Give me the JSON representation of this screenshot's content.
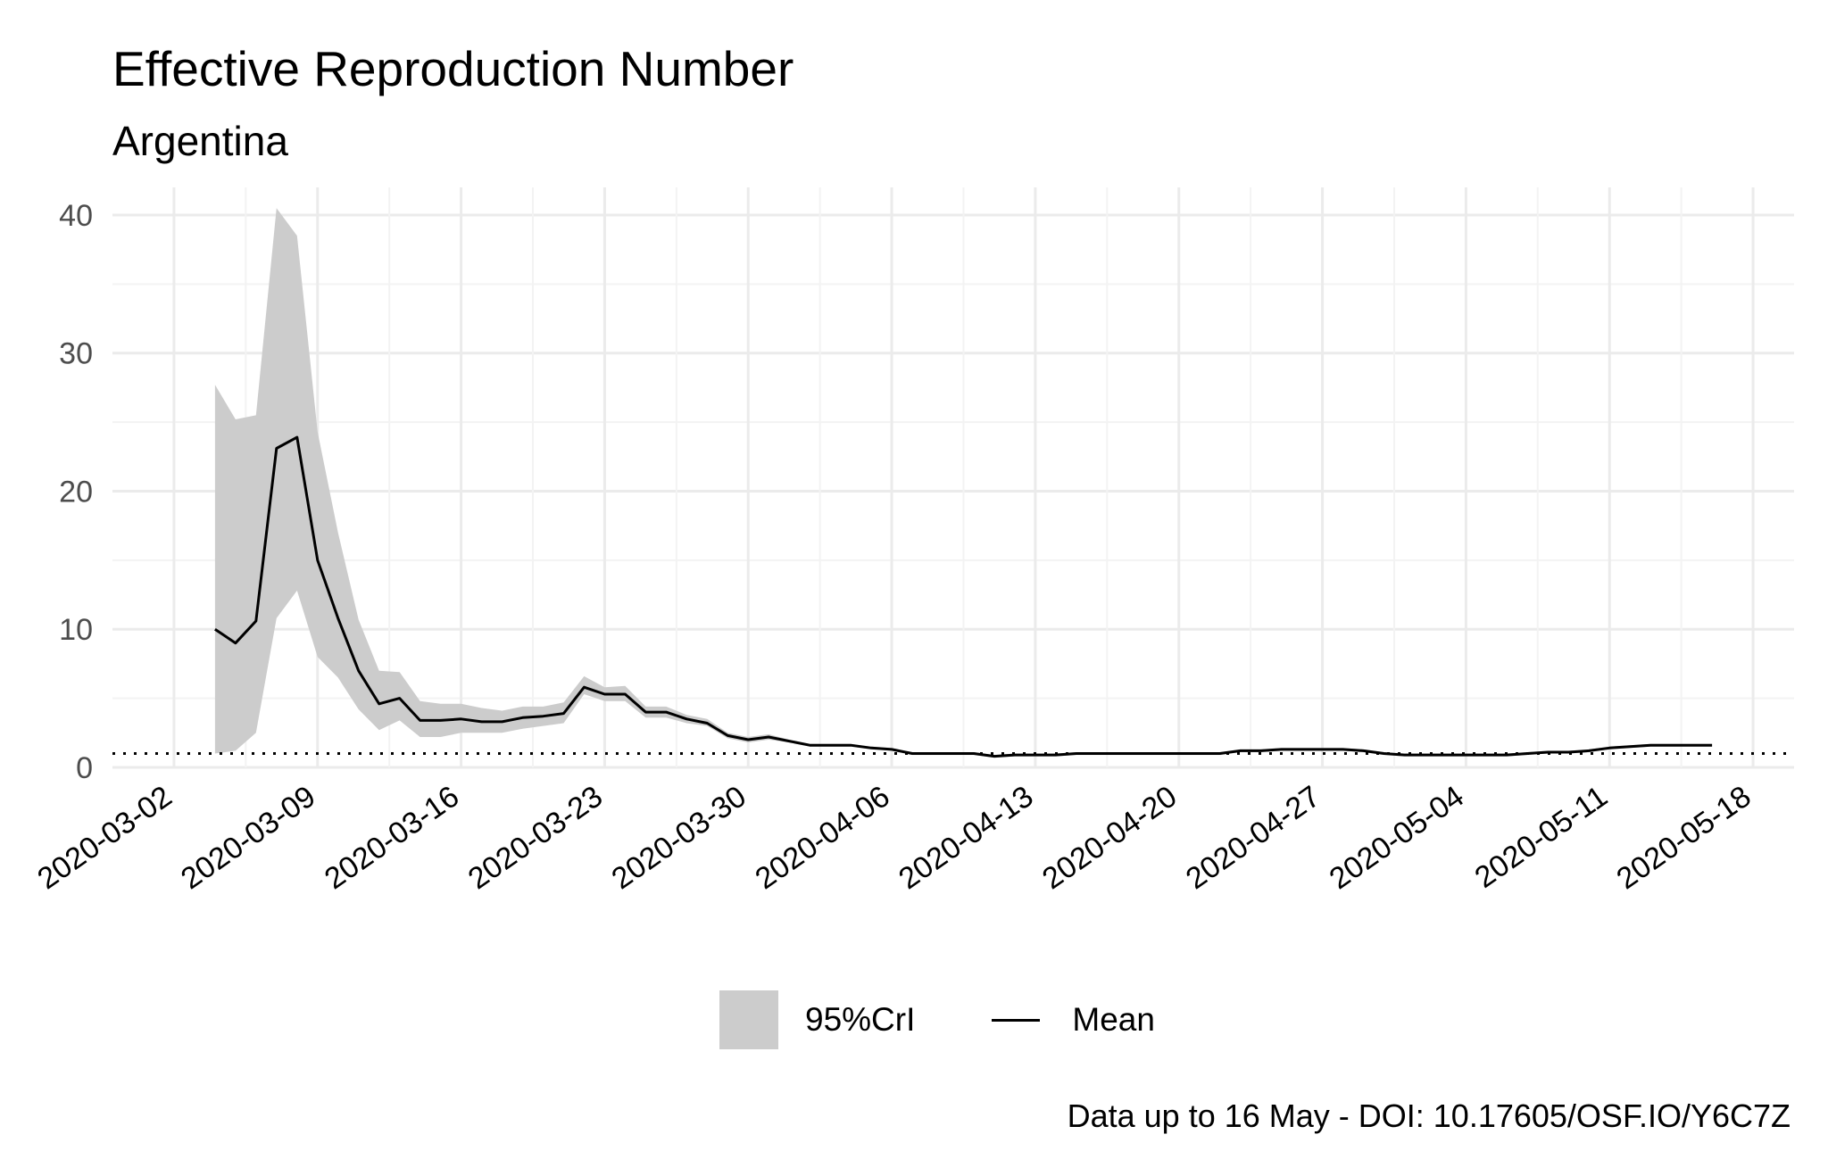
{
  "chart_data": {
    "type": "line",
    "title": "Effective Reproduction Number",
    "subtitle": "Argentina",
    "xlabel": "",
    "ylabel": "",
    "caption": "Data up to 16 May - DOI: 10.17605/OSF.IO/Y6C7Z",
    "ylim": [
      0,
      42
    ],
    "yticks": [
      0,
      10,
      20,
      30,
      40
    ],
    "xlim": [
      "2020-02-28",
      "2020-05-20"
    ],
    "xticks": [
      "2020-03-02",
      "2020-03-09",
      "2020-03-16",
      "2020-03-23",
      "2020-03-30",
      "2020-04-06",
      "2020-04-13",
      "2020-04-20",
      "2020-04-27",
      "2020-05-04",
      "2020-05-11",
      "2020-05-18"
    ],
    "grid": true,
    "reference_line": {
      "y": 1,
      "style": "dotted"
    },
    "legend": {
      "position": "bottom",
      "entries": [
        "95%CrI",
        "Mean"
      ]
    },
    "colors": {
      "band": "#cccccc",
      "line": "#000000",
      "grid": "#ebebeb",
      "text": "#4d4d4d"
    },
    "series": [
      {
        "name": "Mean",
        "x": [
          "2020-03-04",
          "2020-03-05",
          "2020-03-06",
          "2020-03-07",
          "2020-03-08",
          "2020-03-09",
          "2020-03-10",
          "2020-03-11",
          "2020-03-12",
          "2020-03-13",
          "2020-03-14",
          "2020-03-15",
          "2020-03-16",
          "2020-03-17",
          "2020-03-18",
          "2020-03-19",
          "2020-03-20",
          "2020-03-21",
          "2020-03-22",
          "2020-03-23",
          "2020-03-24",
          "2020-03-25",
          "2020-03-26",
          "2020-03-27",
          "2020-03-28",
          "2020-03-29",
          "2020-03-30",
          "2020-03-31",
          "2020-04-01",
          "2020-04-02",
          "2020-04-03",
          "2020-04-04",
          "2020-04-05",
          "2020-04-06",
          "2020-04-07",
          "2020-04-08",
          "2020-04-09",
          "2020-04-10",
          "2020-04-11",
          "2020-04-12",
          "2020-04-13",
          "2020-04-14",
          "2020-04-15",
          "2020-04-16",
          "2020-04-17",
          "2020-04-18",
          "2020-04-19",
          "2020-04-20",
          "2020-04-21",
          "2020-04-22",
          "2020-04-23",
          "2020-04-24",
          "2020-04-25",
          "2020-04-26",
          "2020-04-27",
          "2020-04-28",
          "2020-04-29",
          "2020-04-30",
          "2020-05-01",
          "2020-05-02",
          "2020-05-03",
          "2020-05-04",
          "2020-05-05",
          "2020-05-06",
          "2020-05-07",
          "2020-05-08",
          "2020-05-09",
          "2020-05-10",
          "2020-05-11",
          "2020-05-12",
          "2020-05-13",
          "2020-05-14",
          "2020-05-15",
          "2020-05-16"
        ],
        "mean": [
          10.0,
          9.0,
          10.6,
          23.1,
          23.9,
          15.0,
          10.8,
          7.0,
          4.6,
          5.0,
          3.4,
          3.4,
          3.5,
          3.3,
          3.3,
          3.6,
          3.7,
          3.9,
          5.8,
          5.3,
          5.3,
          4.0,
          4.0,
          3.5,
          3.2,
          2.3,
          2.0,
          2.2,
          1.9,
          1.6,
          1.6,
          1.6,
          1.4,
          1.3,
          1.0,
          1.0,
          1.0,
          1.0,
          0.8,
          0.9,
          0.9,
          0.9,
          1.0,
          1.0,
          1.0,
          1.0,
          1.0,
          1.0,
          1.0,
          1.0,
          1.2,
          1.2,
          1.3,
          1.3,
          1.3,
          1.3,
          1.2,
          1.0,
          0.9,
          0.9,
          0.9,
          0.9,
          0.9,
          0.9,
          1.0,
          1.1,
          1.1,
          1.2,
          1.4,
          1.5,
          1.6,
          1.6,
          1.6,
          1.6
        ],
        "lower": [
          1.0,
          1.2,
          2.5,
          10.8,
          12.8,
          8.0,
          6.5,
          4.2,
          2.7,
          3.4,
          2.2,
          2.2,
          2.5,
          2.5,
          2.5,
          2.8,
          3.0,
          3.2,
          5.3,
          4.8,
          4.8,
          3.6,
          3.6,
          3.2,
          3.0,
          2.1,
          1.8,
          2.0,
          1.8,
          1.5,
          1.5,
          1.5,
          1.3,
          1.2,
          0.9,
          0.9,
          0.9,
          0.9,
          0.7,
          0.8,
          0.8,
          0.8,
          0.9,
          0.9,
          0.9,
          0.9,
          0.9,
          0.9,
          0.9,
          0.9,
          1.1,
          1.1,
          1.2,
          1.2,
          1.2,
          1.2,
          1.1,
          0.9,
          0.8,
          0.8,
          0.8,
          0.8,
          0.8,
          0.8,
          0.9,
          1.0,
          1.0,
          1.1,
          1.3,
          1.4,
          1.5,
          1.5,
          1.5,
          1.5
        ],
        "upper": [
          27.7,
          25.2,
          25.5,
          40.5,
          38.5,
          24.3,
          17.0,
          10.7,
          7.0,
          6.9,
          4.8,
          4.6,
          4.6,
          4.3,
          4.1,
          4.4,
          4.4,
          4.7,
          6.6,
          5.8,
          5.9,
          4.4,
          4.4,
          3.8,
          3.5,
          2.5,
          2.2,
          2.4,
          2.0,
          1.7,
          1.7,
          1.7,
          1.5,
          1.4,
          1.1,
          1.1,
          1.1,
          1.1,
          0.9,
          1.0,
          1.0,
          1.0,
          1.1,
          1.1,
          1.1,
          1.1,
          1.1,
          1.1,
          1.1,
          1.1,
          1.3,
          1.3,
          1.4,
          1.4,
          1.4,
          1.4,
          1.3,
          1.1,
          1.0,
          1.0,
          1.0,
          1.0,
          1.0,
          1.0,
          1.1,
          1.2,
          1.2,
          1.3,
          1.5,
          1.6,
          1.7,
          1.7,
          1.7,
          1.7
        ]
      }
    ]
  },
  "legend_labels": {
    "band": "95%CrI",
    "line": "Mean"
  }
}
